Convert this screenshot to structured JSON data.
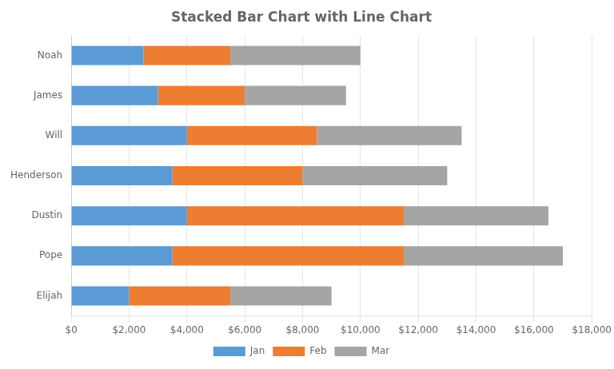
{
  "chart_data": {
    "type": "bar",
    "orientation": "horizontal",
    "stacked": true,
    "title": "Stacked Bar Chart with Line Chart",
    "categories": [
      "Elijah",
      "Pope",
      "Dustin",
      "Henderson",
      "Will",
      "James",
      "Noah"
    ],
    "series": [
      {
        "name": "Jan",
        "color": "#5B9BD5",
        "values": [
          2000,
          3500,
          4000,
          3500,
          4000,
          3000,
          2500
        ]
      },
      {
        "name": "Feb",
        "color": "#ED7D31",
        "values": [
          3500,
          8000,
          7500,
          4500,
          4500,
          3000,
          3000
        ]
      },
      {
        "name": "Mar",
        "color": "#A5A5A5",
        "values": [
          3500,
          5500,
          5000,
          5000,
          5000,
          3500,
          4500
        ]
      }
    ],
    "xlim": [
      0,
      18000
    ],
    "xticks": [
      {
        "value": 0,
        "label": "$0"
      },
      {
        "value": 2000,
        "label": "$2,000"
      },
      {
        "value": 4000,
        "label": "$4,000"
      },
      {
        "value": 6000,
        "label": "$6,000"
      },
      {
        "value": 8000,
        "label": "$8,000"
      },
      {
        "value": 10000,
        "label": "$10,000"
      },
      {
        "value": 12000,
        "label": "$12,000"
      },
      {
        "value": 14000,
        "label": "$14,000"
      },
      {
        "value": 16000,
        "label": "$16,000"
      },
      {
        "value": 18000,
        "label": "$18,000"
      }
    ],
    "grid": true,
    "legend": "bottom"
  }
}
